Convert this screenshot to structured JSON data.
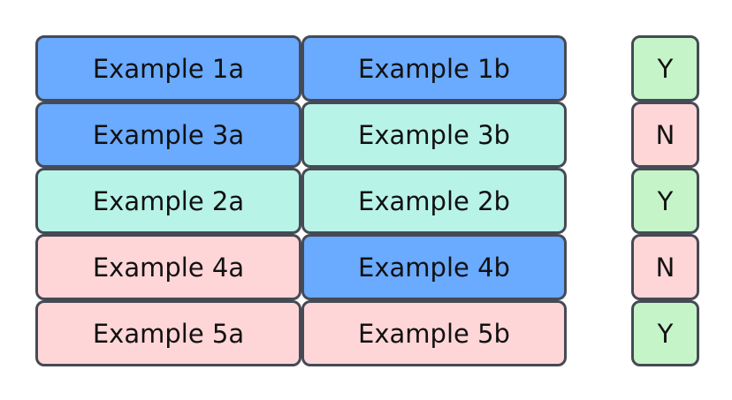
{
  "colors": {
    "blue": "#6aaaff",
    "teal": "#b8f3e8",
    "pink": "#ffd6d8",
    "green": "#c4f4c8",
    "border": "#454a54"
  },
  "rows": [
    {
      "a": {
        "label": "Example 1a",
        "color": "blue"
      },
      "b": {
        "label": "Example 1b",
        "color": "blue"
      },
      "answer": {
        "label": "Y",
        "color": "green"
      }
    },
    {
      "a": {
        "label": "Example 3a",
        "color": "blue"
      },
      "b": {
        "label": "Example 3b",
        "color": "teal"
      },
      "answer": {
        "label": "N",
        "color": "pink"
      }
    },
    {
      "a": {
        "label": "Example 2a",
        "color": "teal"
      },
      "b": {
        "label": "Example 2b",
        "color": "teal"
      },
      "answer": {
        "label": "Y",
        "color": "green"
      }
    },
    {
      "a": {
        "label": "Example 4a",
        "color": "pink"
      },
      "b": {
        "label": "Example 4b",
        "color": "blue"
      },
      "answer": {
        "label": "N",
        "color": "pink"
      }
    },
    {
      "a": {
        "label": "Example 5a",
        "color": "pink"
      },
      "b": {
        "label": "Example 5b",
        "color": "pink"
      },
      "answer": {
        "label": "Y",
        "color": "green"
      }
    }
  ]
}
